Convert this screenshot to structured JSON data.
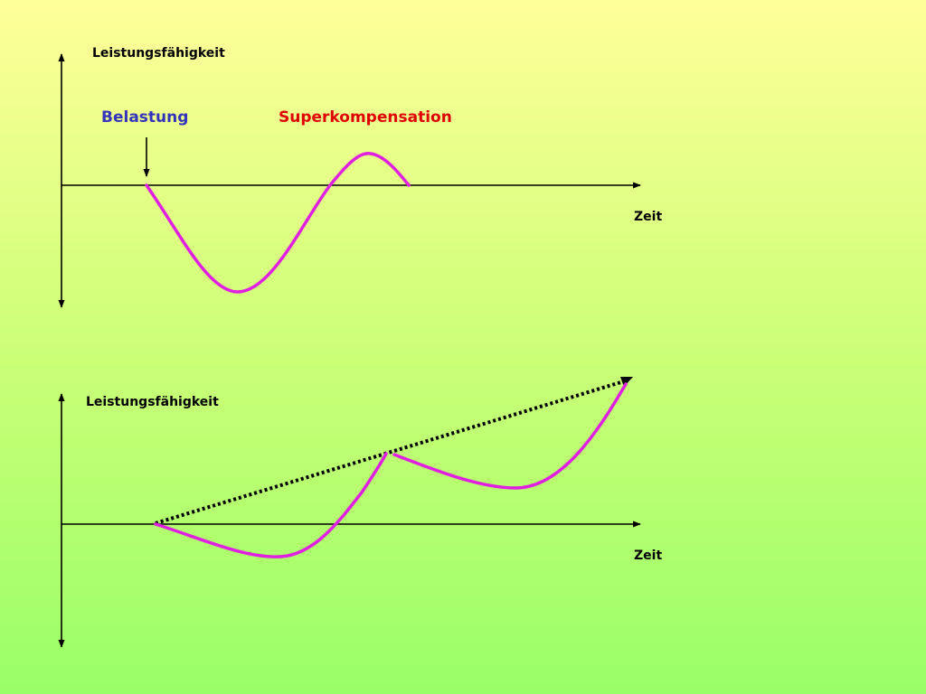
{
  "top_diagram": {
    "y_axis_label": "Leistungsfähigkeit",
    "x_axis_label": "Zeit",
    "load_label": "Belastung",
    "supercompensation_label": "Superkompensation"
  },
  "bottom_diagram": {
    "y_axis_label": "Leistungsfähigkeit",
    "x_axis_label": "Zeit"
  },
  "colors": {
    "curve": "#e020e0",
    "axis": "#000000",
    "load_label": "#3333bb",
    "supercompensation_label": "#e00000",
    "trend_line": "#000000"
  }
}
